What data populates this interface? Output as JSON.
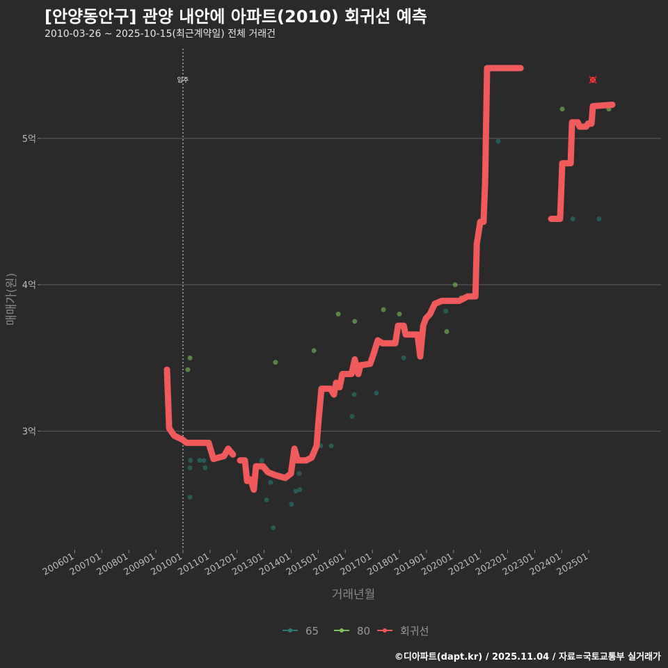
{
  "title": "[안양동안구] 관양 내안에 아파트(2010) 회귀선 예측",
  "subtitle": "2010-03-26 ~ 2025-10-15(최근계약일) 전체 거래건",
  "caption": "©디아파트(dapt.kr) / 2025.11.04 / 자료=국토교통부 실거래가",
  "colors": {
    "s65": "#2a7d70",
    "s80": "#7fbf5a",
    "reg": "#f05a5a",
    "grid": "#565656",
    "marker": "#cc2222"
  },
  "chart_data": {
    "type": "line",
    "title": "[안양동안구] 관양 내안에 아파트(2010) 회귀선 예측",
    "xlabel": "거래년월",
    "ylabel": "매매가(원)",
    "xlim": [
      2004.73,
      2027.67
    ],
    "ylim": [
      2.19,
      5.66
    ],
    "y_ticks": [
      {
        "v": 3,
        "label": "3억"
      },
      {
        "v": 4,
        "label": "4억"
      },
      {
        "v": 5,
        "label": "5억"
      }
    ],
    "x_ticks": [
      {
        "v": 2006,
        "label": "200601"
      },
      {
        "v": 2007,
        "label": "200701"
      },
      {
        "v": 2008,
        "label": "200801"
      },
      {
        "v": 2009,
        "label": "200901"
      },
      {
        "v": 2010,
        "label": "201001"
      },
      {
        "v": 2011,
        "label": "201101"
      },
      {
        "v": 2012,
        "label": "201201"
      },
      {
        "v": 2013,
        "label": "201301"
      },
      {
        "v": 2014,
        "label": "201401"
      },
      {
        "v": 2015,
        "label": "201501"
      },
      {
        "v": 2016,
        "label": "201601"
      },
      {
        "v": 2017,
        "label": "201701"
      },
      {
        "v": 2018,
        "label": "201801"
      },
      {
        "v": 2019,
        "label": "201901"
      },
      {
        "v": 2020,
        "label": "202001"
      },
      {
        "v": 2021,
        "label": "202101"
      },
      {
        "v": 2022,
        "label": "202201"
      },
      {
        "v": 2023,
        "label": "202301"
      },
      {
        "v": 2024,
        "label": "202401"
      },
      {
        "v": 2025,
        "label": "202501"
      }
    ],
    "annotation": {
      "x": 2010.0,
      "label": "입주"
    },
    "legend": {
      "position": "bottom",
      "items": [
        "65",
        "80",
        "회귀선"
      ]
    },
    "series": [
      {
        "name": "65",
        "type": "scatter",
        "points": [
          [
            2010.26,
            2.75
          ],
          [
            2010.28,
            2.8
          ],
          [
            2010.26,
            2.55
          ],
          [
            2010.62,
            2.8
          ],
          [
            2010.77,
            2.8
          ],
          [
            2010.82,
            2.75
          ],
          [
            2012.91,
            2.8
          ],
          [
            2013.09,
            2.53
          ],
          [
            2013.24,
            2.65
          ],
          [
            2013.34,
            2.34
          ],
          [
            2014.01,
            2.5
          ],
          [
            2014.17,
            2.59
          ],
          [
            2014.32,
            2.6
          ],
          [
            2014.3,
            2.71
          ],
          [
            2015.09,
            2.9
          ],
          [
            2015.48,
            2.9
          ],
          [
            2016.25,
            3.1
          ],
          [
            2016.33,
            3.25
          ],
          [
            2017.15,
            3.26
          ],
          [
            2018.16,
            3.5
          ],
          [
            2019.72,
            3.82
          ],
          [
            2021.65,
            4.98
          ],
          [
            2024.41,
            4.45
          ],
          [
            2025.38,
            4.45
          ]
        ]
      },
      {
        "name": "80",
        "type": "scatter",
        "points": [
          [
            2010.18,
            3.42
          ],
          [
            2010.26,
            3.5
          ],
          [
            2013.42,
            3.47
          ],
          [
            2014.84,
            3.55
          ],
          [
            2015.74,
            3.8
          ],
          [
            2016.35,
            3.75
          ],
          [
            2017.41,
            3.83
          ],
          [
            2018.0,
            3.8
          ],
          [
            2019.75,
            3.68
          ],
          [
            2020.06,
            4.0
          ],
          [
            2020.29,
            3.91
          ],
          [
            2024.02,
            5.2
          ],
          [
            2025.74,
            5.2
          ]
        ]
      },
      {
        "name": "회귀선",
        "type": "line",
        "segments": [
          [
            [
              2009.41,
              3.42
            ],
            [
              2009.49,
              3.02
            ],
            [
              2009.67,
              2.97
            ],
            [
              2010.0,
              2.94
            ],
            [
              2010.13,
              2.92
            ],
            [
              2010.95,
              2.92
            ],
            [
              2011.13,
              2.81
            ],
            [
              2011.52,
              2.83
            ],
            [
              2011.67,
              2.88
            ],
            [
              2011.85,
              2.84
            ]
          ],
          [
            [
              2012.11,
              2.8
            ],
            [
              2012.29,
              2.8
            ],
            [
              2012.37,
              2.66
            ],
            [
              2012.5,
              2.67
            ],
            [
              2012.62,
              2.6
            ],
            [
              2012.7,
              2.76
            ],
            [
              2012.96,
              2.76
            ],
            [
              2013.14,
              2.72
            ],
            [
              2013.4,
              2.7
            ],
            [
              2013.78,
              2.68
            ],
            [
              2013.99,
              2.71
            ],
            [
              2014.12,
              2.88
            ],
            [
              2014.24,
              2.8
            ],
            [
              2014.55,
              2.8
            ],
            [
              2014.76,
              2.82
            ],
            [
              2014.94,
              2.9
            ],
            [
              2015.02,
              3.09
            ],
            [
              2015.12,
              3.29
            ],
            [
              2015.45,
              3.29
            ],
            [
              2015.58,
              3.25
            ],
            [
              2015.66,
              3.33
            ],
            [
              2015.79,
              3.3
            ],
            [
              2015.89,
              3.39
            ],
            [
              2016.23,
              3.39
            ],
            [
              2016.35,
              3.49
            ],
            [
              2016.48,
              3.39
            ],
            [
              2016.56,
              3.45
            ],
            [
              2016.92,
              3.46
            ],
            [
              2017.05,
              3.53
            ],
            [
              2017.2,
              3.62
            ],
            [
              2017.38,
              3.6
            ],
            [
              2017.85,
              3.6
            ],
            [
              2017.95,
              3.72
            ],
            [
              2018.16,
              3.72
            ],
            [
              2018.23,
              3.66
            ],
            [
              2018.67,
              3.66
            ],
            [
              2018.77,
              3.51
            ],
            [
              2018.88,
              3.72
            ],
            [
              2018.98,
              3.77
            ],
            [
              2019.13,
              3.8
            ],
            [
              2019.31,
              3.87
            ],
            [
              2019.57,
              3.89
            ],
            [
              2020.21,
              3.89
            ],
            [
              2020.52,
              3.92
            ],
            [
              2020.81,
              3.92
            ],
            [
              2020.86,
              4.28
            ],
            [
              2020.99,
              4.43
            ],
            [
              2021.11,
              4.43
            ],
            [
              2021.17,
              4.71
            ],
            [
              2021.24,
              5.48
            ],
            [
              2022.48,
              5.48
            ]
          ],
          [
            [
              2023.61,
              4.45
            ],
            [
              2023.94,
              4.45
            ],
            [
              2024.02,
              4.83
            ],
            [
              2024.33,
              4.83
            ],
            [
              2024.38,
              5.11
            ],
            [
              2024.59,
              5.11
            ],
            [
              2024.66,
              5.08
            ],
            [
              2024.9,
              5.08
            ],
            [
              2024.97,
              5.1
            ],
            [
              2025.1,
              5.1
            ],
            [
              2025.15,
              5.22
            ],
            [
              2025.87,
              5.23
            ]
          ]
        ]
      },
      {
        "name": "latest-marker",
        "type": "marker",
        "points": [
          [
            2025.15,
            5.4
          ]
        ]
      }
    ]
  }
}
